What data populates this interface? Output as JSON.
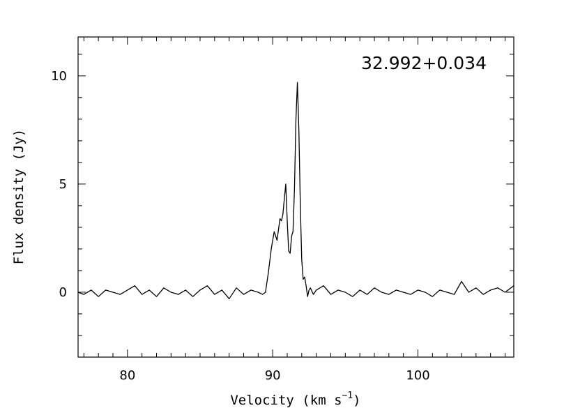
{
  "chart_data": {
    "type": "line",
    "title": "",
    "annotation": "32.992+0.034",
    "xlabel": "Velocity (km s",
    "xlabel_sup": "−1",
    "xlabel_close": ")",
    "ylabel": "Flux density (Jy)",
    "xlim": [
      76.6,
      106.6
    ],
    "ylim": [
      -3.0,
      11.8
    ],
    "x_major_ticks": [
      80,
      90,
      100
    ],
    "x_tick_labels": [
      "80",
      "90",
      "100"
    ],
    "x_minor_step": 1,
    "y_major_ticks": [
      0,
      5,
      10
    ],
    "y_tick_labels": [
      "0",
      "5",
      "10"
    ],
    "y_minor_step": 1,
    "grid": false,
    "legend": "none",
    "series": [
      {
        "x": [
          76.6,
          77.0,
          77.5,
          78.0,
          78.5,
          79.0,
          79.5,
          80.0,
          80.5,
          81.0,
          81.5,
          82.0,
          82.5,
          83.0,
          83.5,
          84.0,
          84.5,
          85.0,
          85.5,
          86.0,
          86.5,
          87.0,
          87.5,
          88.0,
          88.5,
          89.0,
          89.3,
          89.5,
          89.7,
          89.9,
          90.1,
          90.3,
          90.5,
          90.6,
          90.7,
          90.8,
          90.9,
          91.0,
          91.1,
          91.2,
          91.3,
          91.4,
          91.5,
          91.6,
          91.7,
          91.8,
          91.9,
          92.0,
          92.1,
          92.2,
          92.3,
          92.4,
          92.5,
          92.6,
          92.8,
          93.0,
          93.5,
          94.0,
          94.5,
          95.0,
          95.5,
          96.0,
          96.5,
          97.0,
          97.5,
          98.0,
          98.5,
          99.0,
          99.5,
          100.0,
          100.5,
          101.0,
          101.5,
          102.0,
          102.5,
          103.0,
          103.5,
          104.0,
          104.5,
          105.0,
          105.5,
          106.0,
          106.6
        ],
        "y": [
          0.0,
          -0.1,
          0.1,
          -0.2,
          0.1,
          0.0,
          -0.1,
          0.1,
          0.3,
          -0.1,
          0.1,
          -0.2,
          0.2,
          0.0,
          -0.1,
          0.1,
          -0.2,
          0.1,
          0.3,
          -0.1,
          0.1,
          -0.3,
          0.2,
          -0.1,
          0.1,
          0.0,
          -0.1,
          0.0,
          0.9,
          2.0,
          2.8,
          2.4,
          3.4,
          3.3,
          3.6,
          4.3,
          5.0,
          3.3,
          1.9,
          1.8,
          2.6,
          2.8,
          4.8,
          8.0,
          9.7,
          7.5,
          4.0,
          1.5,
          0.6,
          0.7,
          0.3,
          -0.2,
          0.1,
          0.2,
          -0.1,
          0.1,
          0.3,
          -0.1,
          0.1,
          0.0,
          -0.2,
          0.1,
          -0.1,
          0.2,
          0.0,
          -0.1,
          0.1,
          0.0,
          -0.1,
          0.1,
          0.0,
          -0.2,
          0.1,
          0.0,
          -0.1,
          0.5,
          0.0,
          0.2,
          -0.1,
          0.1,
          0.2,
          0.0,
          0.3
        ]
      }
    ]
  }
}
